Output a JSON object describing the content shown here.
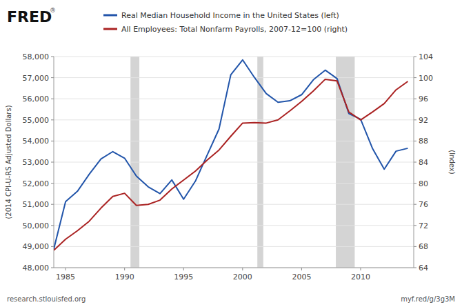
{
  "chart_data": {
    "type": "line",
    "x": [
      1984,
      1985,
      1986,
      1987,
      1988,
      1989,
      1990,
      1991,
      1992,
      1993,
      1994,
      1995,
      1996,
      1997,
      1998,
      1999,
      2000,
      2001,
      2002,
      2003,
      2004,
      2005,
      2006,
      2007,
      2008,
      2009,
      2010,
      2011,
      2012,
      2013,
      2014
    ],
    "series": [
      {
        "name": "Real Median Household Income in the United States (left)",
        "color": "#2255aa",
        "values": [
          48884,
          51130,
          51616,
          52422,
          53153,
          53498,
          53187,
          52337,
          51829,
          51508,
          52156,
          51244,
          52099,
          53339,
          54569,
          57140,
          57843,
          57013,
          56249,
          55835,
          55905,
          56194,
          56905,
          57357,
          56960,
          55303,
          55031,
          53657,
          52667,
          53519,
          53657
        ]
      },
      {
        "name": "All Employees: Total Nonfarm Payrolls, 2007-12=100 (right)",
        "color": "#aa2222",
        "axis": "y2",
        "values": [
          67.3,
          69.4,
          71.0,
          72.8,
          75.3,
          77.5,
          78.1,
          75.8,
          76.0,
          76.8,
          78.9,
          80.6,
          82.3,
          84.4,
          86.3,
          88.9,
          91.4,
          91.5,
          91.4,
          92.0,
          93.7,
          95.5,
          97.5,
          99.7,
          99.4,
          93.5,
          92.0,
          93.5,
          95.1,
          97.7,
          99.3
        ]
      }
    ],
    "ylabel": "(2014 CPI-U-RS Adjusted Dollars)",
    "y2label": "(Index)",
    "xlim": [
      1984,
      2014.5
    ],
    "xticks": [
      1985,
      1990,
      1995,
      2000,
      2005,
      2010
    ],
    "ylim": [
      48000,
      58000
    ],
    "yticks": [
      {
        "value": 48000,
        "label": "48,000"
      },
      {
        "value": 49000,
        "label": "49,000"
      },
      {
        "value": 50000,
        "label": "50,000"
      },
      {
        "value": 51000,
        "label": "51,000"
      },
      {
        "value": 52000,
        "label": "52,000"
      },
      {
        "value": 53000,
        "label": "53,000"
      },
      {
        "value": 54000,
        "label": "54,000"
      },
      {
        "value": 55000,
        "label": "55,000"
      },
      {
        "value": 56000,
        "label": "56,000"
      },
      {
        "value": 57000,
        "label": "57,000"
      },
      {
        "value": 58000,
        "label": "58,000"
      }
    ],
    "y2lim": [
      64,
      104
    ],
    "y2ticks": [
      64,
      68,
      72,
      76,
      80,
      84,
      88,
      92,
      96,
      100,
      104
    ],
    "recessions": [
      [
        1990.5,
        1991.25
      ],
      [
        2001.25,
        2001.75
      ],
      [
        2007.9,
        2009.5
      ]
    ],
    "annotations": [
      "FRED",
      "®",
      "research.stlouisfed.org",
      "myf.red/g/3g3M"
    ],
    "grid": true,
    "legend": "top"
  }
}
